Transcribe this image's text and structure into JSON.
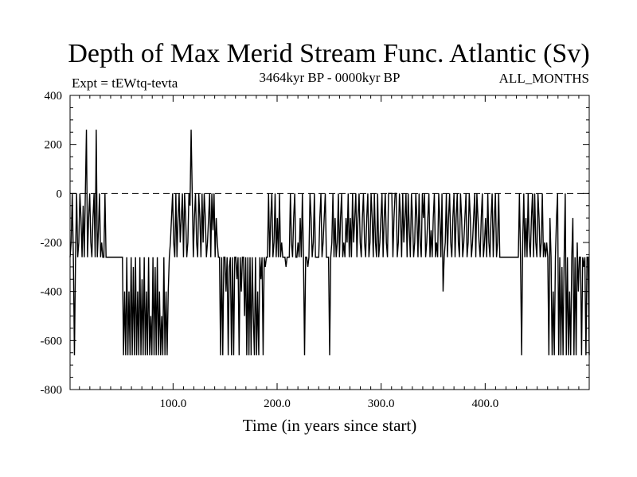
{
  "chart_data": {
    "type": "line",
    "title": "Depth of Max Merid Stream Func. Atlantic (Sv)",
    "experiment": "Expt = tEWtq-tevta",
    "period": "3464kyr BP - 0000kyr BP",
    "months": "ALL_MONTHS",
    "xlabel": "Time (in years since start)",
    "ylabel": "",
    "xlim": [
      1,
      500
    ],
    "ylim": [
      -800,
      400
    ],
    "xticks": [
      100,
      200,
      300,
      400
    ],
    "xtick_labels": [
      "100.0",
      "200.0",
      "300.0",
      "400.0"
    ],
    "yticks": [
      -800,
      -600,
      -400,
      -200,
      0,
      200,
      400
    ],
    "ytick_labels": [
      "-800",
      "-600",
      "-400",
      "-200",
      "0",
      "200",
      "400"
    ],
    "zero_line": true,
    "grid": false,
    "series": [
      {
        "values": [
          -260,
          -200,
          0,
          -260,
          -660,
          -260,
          0,
          -260,
          -200,
          0,
          -100,
          -260,
          -50,
          -260,
          0,
          260,
          -260,
          -100,
          0,
          -200,
          -260,
          -100,
          0,
          -260,
          260,
          -260,
          -150,
          0,
          -260,
          -200,
          -260,
          -260,
          0,
          -260,
          -260,
          -260,
          -260,
          -260,
          -260,
          -260,
          -260,
          -260,
          -260,
          -260,
          -260,
          -260,
          -260,
          -260,
          -260,
          -660,
          -400,
          -660,
          -260,
          -660,
          -400,
          -660,
          -260,
          -660,
          -300,
          -660,
          -260,
          -660,
          -400,
          -660,
          -260,
          -660,
          -350,
          -660,
          -260,
          -660,
          -400,
          -660,
          -260,
          -660,
          -500,
          -660,
          -260,
          -660,
          -300,
          -660,
          -260,
          -660,
          -400,
          -660,
          -500,
          -660,
          -260,
          -660,
          -400,
          -660,
          -400,
          -260,
          -200,
          -100,
          0,
          -200,
          -260,
          0,
          -260,
          -100,
          0,
          -200,
          -100,
          0,
          -260,
          0,
          -100,
          -260,
          -200,
          0,
          -50,
          260,
          0,
          -260,
          -100,
          0,
          -200,
          -260,
          0,
          -100,
          -260,
          0,
          -200,
          0,
          -100,
          -260,
          -200,
          -100,
          0,
          -260,
          0,
          -150,
          0,
          -260,
          -100,
          -200,
          -260,
          -260,
          -660,
          -260,
          -660,
          -260,
          -260,
          -400,
          -260,
          -660,
          -300,
          -260,
          -660,
          -260,
          -660,
          -260,
          -260,
          -350,
          -260,
          -660,
          -260,
          -400,
          -260,
          -260,
          -500,
          -260,
          -660,
          -260,
          -660,
          -260,
          -660,
          -260,
          -500,
          -660,
          -260,
          -660,
          -400,
          -660,
          -260,
          -350,
          -260,
          -660,
          -260,
          -300,
          -260,
          -260,
          0,
          -260,
          -100,
          0,
          -260,
          -200,
          0,
          -260,
          -100,
          -260,
          0,
          -260,
          -200,
          -260,
          -260,
          -260,
          -300,
          -260,
          -260,
          -260,
          0,
          -200,
          -260,
          -100,
          0,
          -260,
          -260,
          -200,
          -260,
          -100,
          -260,
          0,
          -260,
          -660,
          -260,
          -260,
          -300,
          -260,
          0,
          -100,
          -260,
          -200,
          0,
          -260,
          -260,
          -260,
          -260,
          -100,
          0,
          -260,
          -200,
          -100,
          0,
          -260,
          -260,
          -260,
          -660,
          -260,
          -200,
          0,
          -260,
          -100,
          -260,
          -200,
          0,
          -260,
          -100,
          0,
          -260,
          -200,
          -260,
          -100,
          -200,
          0,
          -260,
          -100,
          -260,
          0,
          -200,
          -100,
          0,
          -260,
          -100,
          0,
          -200,
          -260,
          -100,
          0,
          -200,
          -260,
          -100,
          0,
          -260,
          -200,
          0,
          -100,
          -260,
          0,
          -200,
          -260,
          0,
          -260,
          -200,
          -100,
          0,
          -260,
          -100,
          0,
          -200,
          -260,
          0,
          0,
          0,
          0,
          -260,
          -100,
          0,
          0,
          -260,
          -200,
          0,
          -100,
          -260,
          0,
          -200,
          -100,
          0,
          -260,
          0,
          -150,
          -260,
          0,
          -100,
          -260,
          -200,
          0,
          -100,
          -260,
          0,
          -200,
          -260,
          0,
          -100,
          0,
          -260,
          -200,
          -100,
          0,
          -260,
          -150,
          -260,
          -100,
          0,
          -260,
          -200,
          -260,
          0,
          -100,
          -260,
          0,
          -400,
          -260,
          -200,
          0,
          -260,
          -100,
          0,
          -200,
          -260,
          -100,
          0,
          -260,
          -100,
          0,
          -200,
          -260,
          0,
          -100,
          -260,
          -200,
          -100,
          0,
          -260,
          -200,
          0,
          -100,
          -260,
          -200,
          -100,
          0,
          -260,
          0,
          -100,
          -200,
          -260,
          -100,
          0,
          -260,
          -200,
          -100,
          -260,
          0,
          -200,
          -260,
          -100,
          0,
          -260,
          -100,
          0,
          -260,
          -200,
          0,
          -260,
          -260,
          -260,
          -260,
          -260,
          -260,
          -260,
          -260,
          -260,
          -260,
          -260,
          -260,
          -260,
          -260,
          -260,
          -260,
          -260,
          -260,
          0,
          -260,
          -660,
          -200,
          0,
          -260,
          -100,
          -260,
          0,
          -200,
          -260,
          -100,
          0,
          -260,
          0,
          -200,
          -260,
          0,
          -100,
          -260,
          -200,
          0,
          -260,
          -200,
          -260,
          -200,
          -260,
          -660,
          -100,
          -260,
          -660,
          -400,
          -660,
          -260,
          -100,
          0,
          -660,
          -260,
          -660,
          -300,
          -660,
          -260,
          0,
          -660,
          -260,
          -660,
          -400,
          -660,
          -260,
          -100,
          -660,
          -260,
          -660,
          -200,
          -400,
          -260,
          -260,
          -660,
          -260,
          -300,
          -260,
          -660,
          -260,
          -260,
          -660
        ]
      }
    ]
  }
}
